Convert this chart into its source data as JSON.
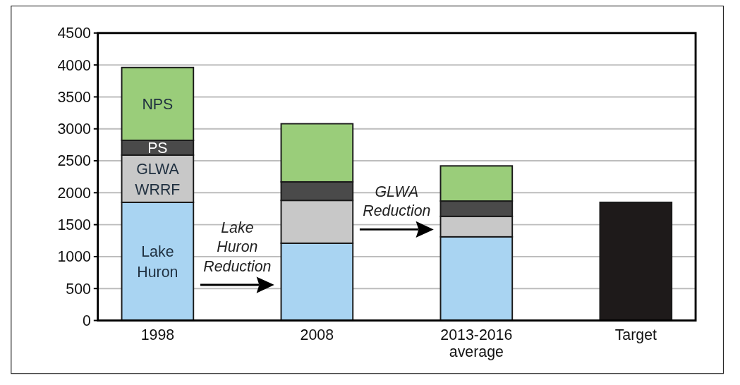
{
  "chart_data": {
    "type": "bar",
    "stacked": true,
    "categories": [
      "1998",
      "2008",
      "2013-2016 average",
      "Target"
    ],
    "series": [
      {
        "name": "Lake Huron",
        "color": "#a9d4f2",
        "values": [
          1850,
          1210,
          1310,
          null
        ]
      },
      {
        "name": "GLWA WRRF",
        "color": "#c8c8c8",
        "values": [
          740,
          670,
          320,
          null
        ]
      },
      {
        "name": "PS",
        "color": "#4a4a4a",
        "values": [
          230,
          290,
          240,
          null
        ]
      },
      {
        "name": "NPS",
        "color": "#9acd7a",
        "values": [
          1140,
          910,
          550,
          null
        ]
      },
      {
        "color": "#1e1a1a",
        "values": [
          null,
          null,
          null,
          1850
        ]
      }
    ],
    "ylim": [
      0,
      4500
    ],
    "yticks": [
      0,
      500,
      1000,
      1500,
      2000,
      2500,
      3000,
      3500,
      4000,
      4500
    ],
    "grid": "y",
    "annotations": [
      "Lake Huron Reduction",
      "GLWA Reduction"
    ]
  }
}
